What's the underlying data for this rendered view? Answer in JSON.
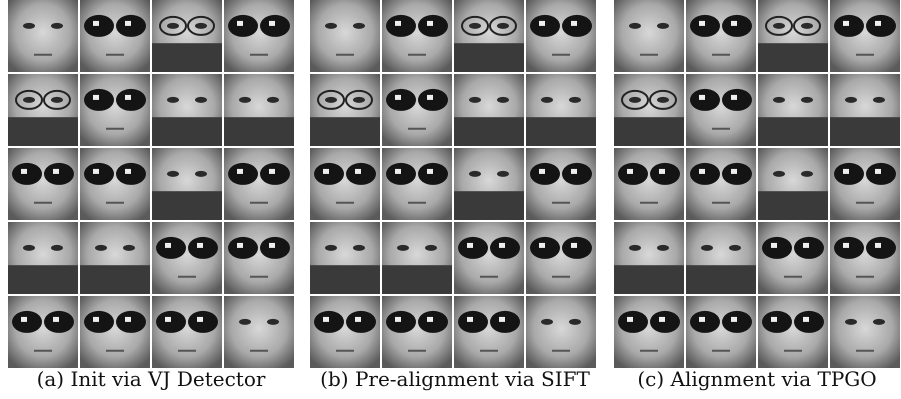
{
  "panels": [
    {
      "caption": "(a) Init via VJ Detector"
    },
    {
      "caption": "(b) Pre-alignment via SIFT"
    },
    {
      "caption": "(c) Alignment via TPGO"
    }
  ]
}
